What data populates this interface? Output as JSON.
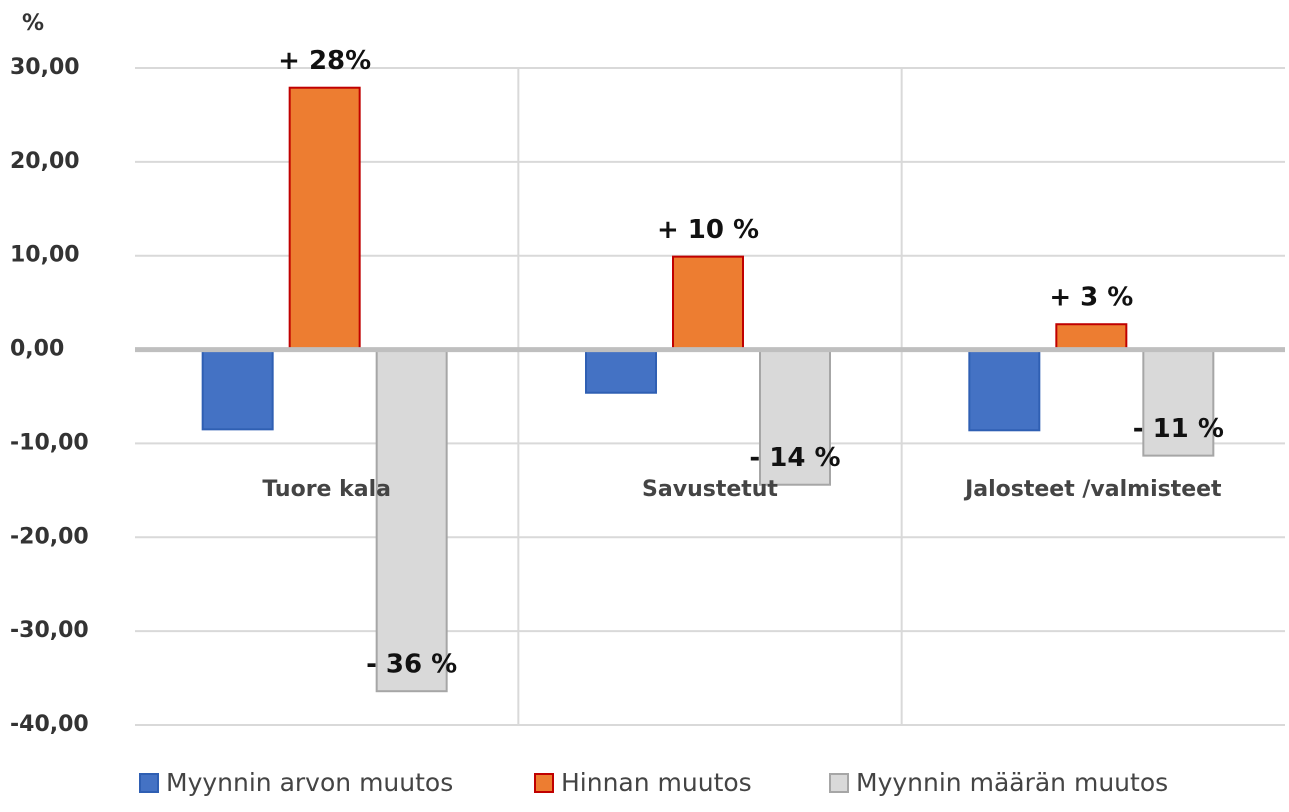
{
  "chart_data": {
    "type": "bar",
    "ylabel": "%",
    "categories": [
      "Tuore  kala",
      "Savustetut",
      "Jalosteet /valmisteet"
    ],
    "series": [
      {
        "name": "Myynnin arvon muutos",
        "color": "#4472c4",
        "values": [
          -8.5,
          -4.6,
          -8.6
        ]
      },
      {
        "name": "Hinnan muutos",
        "color": "#ed7d31",
        "values": [
          27.9,
          9.9,
          2.7
        ],
        "value_labels": [
          "+ 28%",
          "+ 10 %",
          "+ 3 %"
        ]
      },
      {
        "name": "Myynnin määrän muutos",
        "color": "#d9d9d9",
        "values": [
          -36.4,
          -14.4,
          -11.3
        ],
        "value_labels": [
          "- 36 %",
          "- 14 %",
          "- 11 %"
        ]
      }
    ],
    "ylim": [
      -40,
      30
    ],
    "yticks": [
      {
        "value": -40,
        "label": "-40,00"
      },
      {
        "value": -30,
        "label": "-30,00"
      },
      {
        "value": -20,
        "label": "-20,00"
      },
      {
        "value": -10,
        "label": "-10,00"
      },
      {
        "value": 0,
        "label": "0,00"
      },
      {
        "value": 10,
        "label": "10,00"
      },
      {
        "value": 20,
        "label": "20,00"
      },
      {
        "value": 30,
        "label": "30,00"
      }
    ],
    "grid": true,
    "legend": "bottom"
  }
}
